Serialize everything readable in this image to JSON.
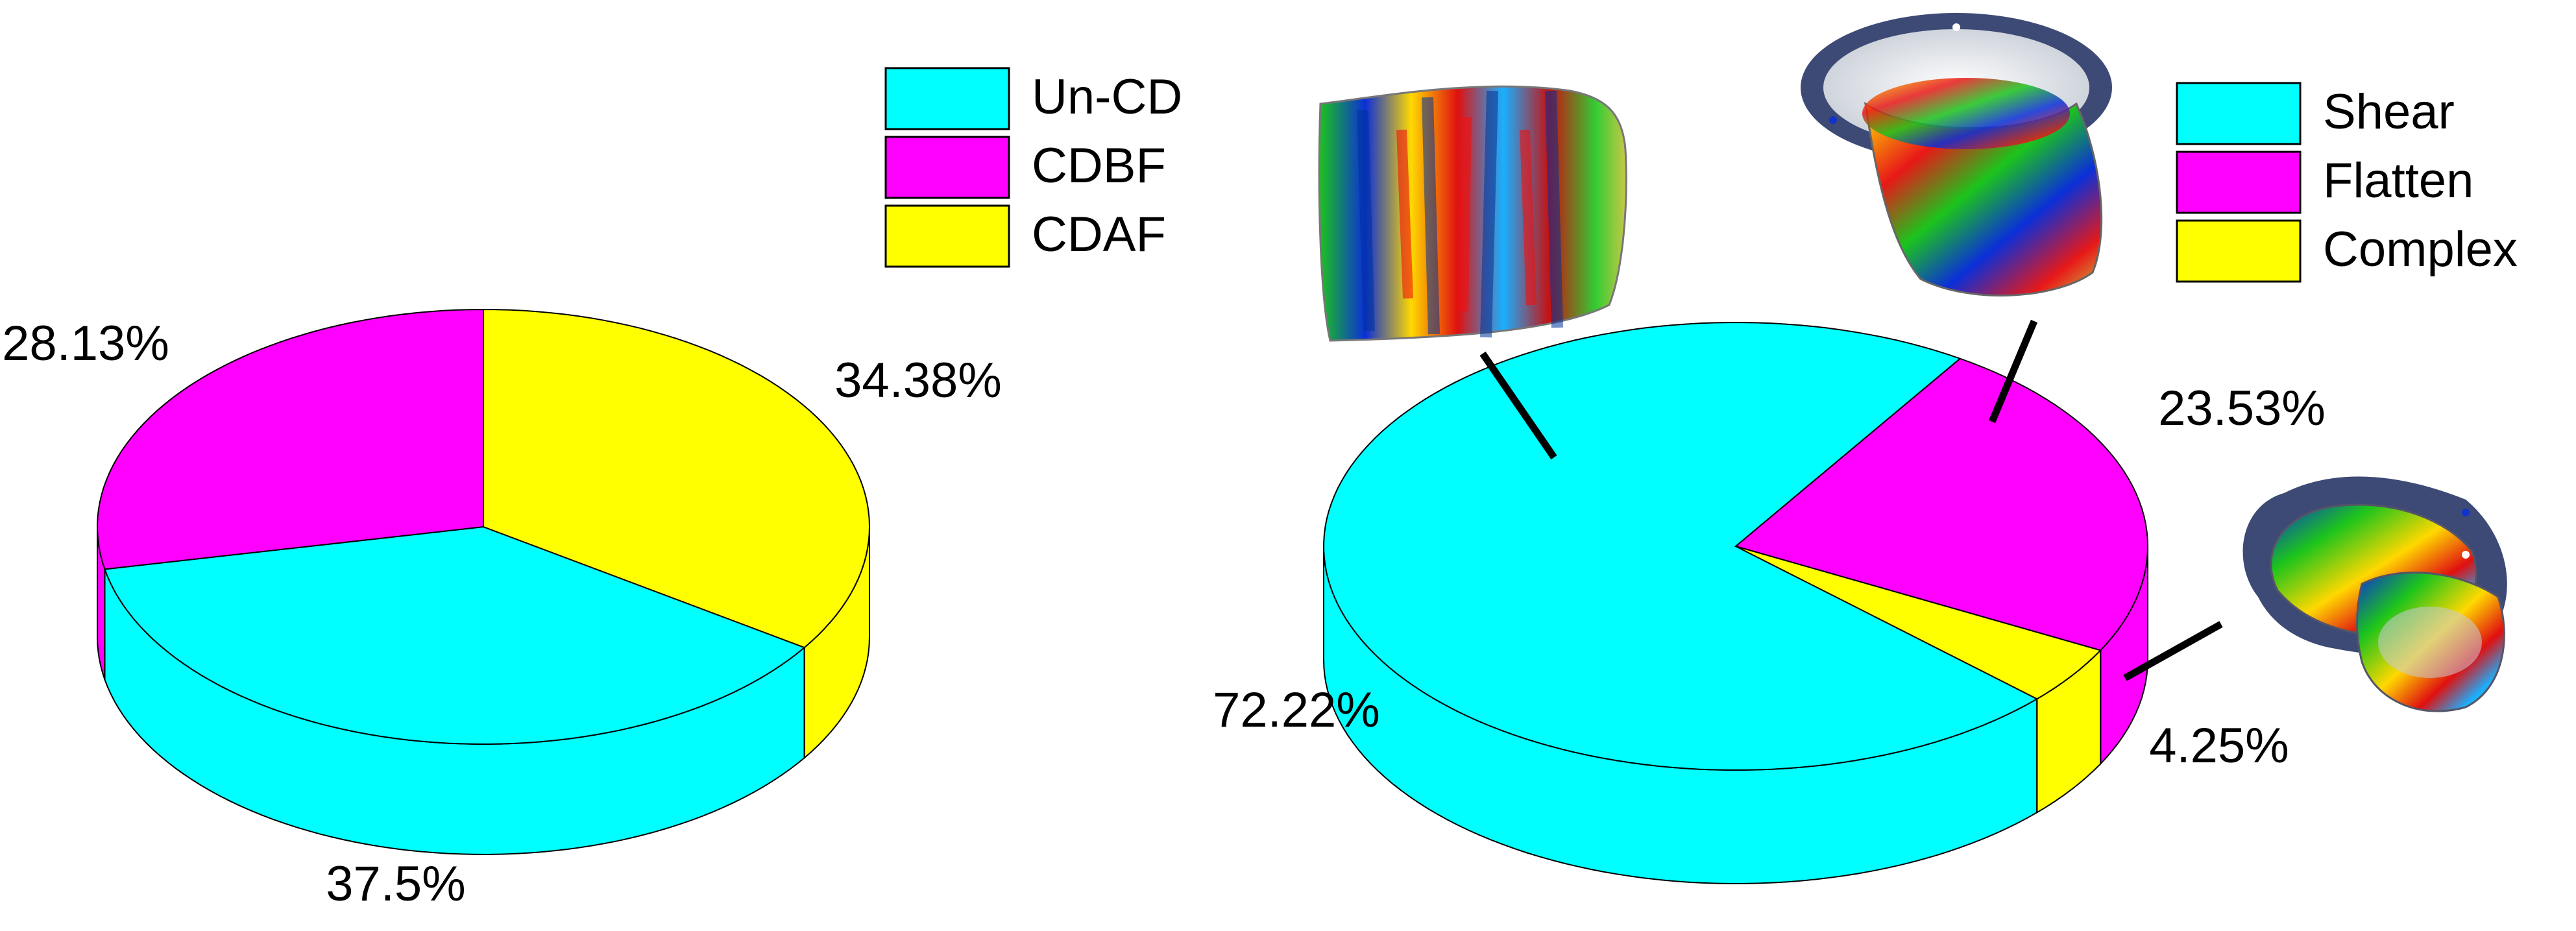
{
  "chart_data": [
    {
      "type": "pie",
      "style": "3d",
      "title": "",
      "legend_position": "top-right",
      "slices": [
        {
          "name": "Un-CD",
          "value": 37.5,
          "label": "37.5%",
          "color": "#00FFFF"
        },
        {
          "name": "CDBF",
          "value": 28.13,
          "label": "28.13%",
          "color": "#FF00FF"
        },
        {
          "name": "CDAF",
          "value": 34.38,
          "label": "34.38%",
          "color": "#FFFF00"
        }
      ]
    },
    {
      "type": "pie",
      "style": "3d",
      "title": "",
      "legend_position": "top-right",
      "slices": [
        {
          "name": "Shear",
          "value": 72.22,
          "label": "72.22%",
          "color": "#00FFFF"
        },
        {
          "name": "Flatten",
          "value": 23.53,
          "label": "23.53%",
          "color": "#FF00FF"
        },
        {
          "name": "Complex",
          "value": 4.25,
          "label": "4.25%",
          "color": "#FFFF00"
        }
      ]
    }
  ]
}
